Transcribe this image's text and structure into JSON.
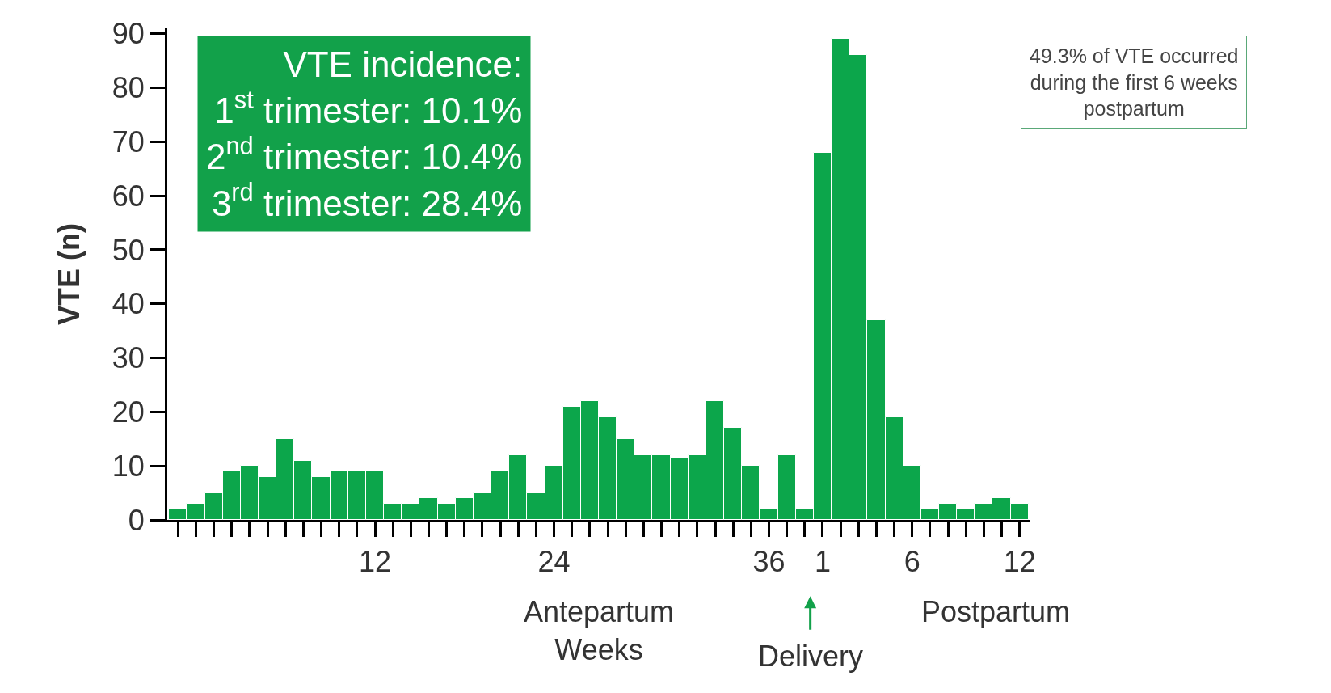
{
  "chart_data": {
    "type": "bar",
    "ylabel": "VTE (n)",
    "categories": [
      null,
      null,
      null,
      null,
      null,
      null,
      null,
      null,
      null,
      null,
      null,
      "12",
      null,
      null,
      null,
      null,
      null,
      null,
      null,
      null,
      null,
      "24",
      null,
      null,
      null,
      null,
      null,
      null,
      null,
      null,
      null,
      null,
      null,
      "36",
      null,
      null,
      "1",
      null,
      null,
      null,
      null,
      "6",
      null,
      null,
      null,
      null,
      null,
      "12"
    ],
    "values": [
      2,
      3,
      5,
      9,
      10,
      8,
      15,
      11,
      8,
      9,
      9,
      9,
      3,
      3,
      4,
      3,
      4,
      5,
      9,
      12,
      5,
      10,
      21,
      22,
      19,
      15,
      12,
      12,
      11.5,
      12,
      22,
      17,
      10,
      2,
      12,
      2,
      68,
      89,
      86,
      37,
      19,
      10,
      2,
      3,
      2,
      3,
      4,
      3
    ],
    "color": "#0ca64b",
    "ylim": [
      0,
      91
    ],
    "yticks": [
      0,
      10,
      20,
      30,
      40,
      50,
      60,
      70,
      80,
      90
    ],
    "annotations": [
      "VTE incidence:\n1$^{st}$ trimester: 10.1%\n2$^{nd}$ trimester: 10.4%\n3$^{rd}$ trimester: 28.4%",
      "49.3% of VTE occurred\nduring the first 6 weeks\npostpartum",
      "Antepartum\nWeeks",
      "Postpartum",
      "Delivery"
    ]
  }
}
